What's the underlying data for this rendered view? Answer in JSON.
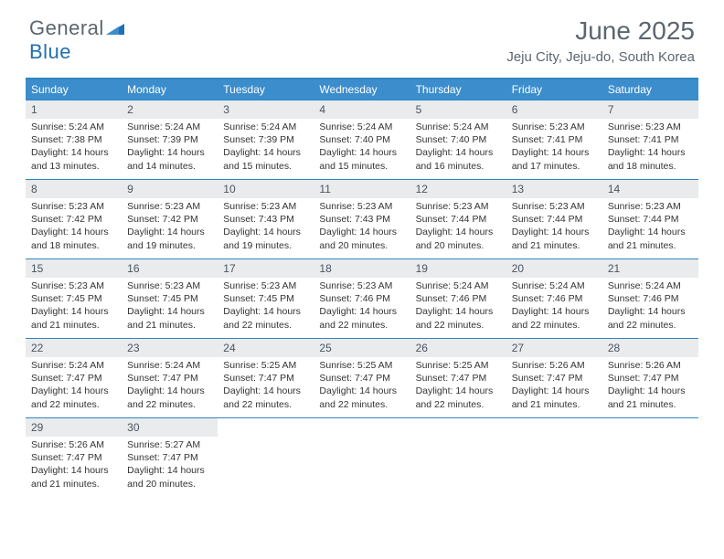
{
  "logo": {
    "text_general": "General",
    "text_blue": "Blue"
  },
  "title": "June 2025",
  "location": "Jeju City, Jeju-do, South Korea",
  "colors": {
    "header_bg": "#3c8dcc",
    "header_text": "#ffffff",
    "border": "#2e86c1",
    "daynum_bg": "#e9ebec",
    "text_muted": "#5a6670",
    "logo_blue": "#1f6fb2"
  },
  "day_headers": [
    "Sunday",
    "Monday",
    "Tuesday",
    "Wednesday",
    "Thursday",
    "Friday",
    "Saturday"
  ],
  "weeks": [
    [
      {
        "n": "1",
        "sr": "Sunrise: 5:24 AM",
        "ss": "Sunset: 7:38 PM",
        "dl": "Daylight: 14 hours and 13 minutes."
      },
      {
        "n": "2",
        "sr": "Sunrise: 5:24 AM",
        "ss": "Sunset: 7:39 PM",
        "dl": "Daylight: 14 hours and 14 minutes."
      },
      {
        "n": "3",
        "sr": "Sunrise: 5:24 AM",
        "ss": "Sunset: 7:39 PM",
        "dl": "Daylight: 14 hours and 15 minutes."
      },
      {
        "n": "4",
        "sr": "Sunrise: 5:24 AM",
        "ss": "Sunset: 7:40 PM",
        "dl": "Daylight: 14 hours and 15 minutes."
      },
      {
        "n": "5",
        "sr": "Sunrise: 5:24 AM",
        "ss": "Sunset: 7:40 PM",
        "dl": "Daylight: 14 hours and 16 minutes."
      },
      {
        "n": "6",
        "sr": "Sunrise: 5:23 AM",
        "ss": "Sunset: 7:41 PM",
        "dl": "Daylight: 14 hours and 17 minutes."
      },
      {
        "n": "7",
        "sr": "Sunrise: 5:23 AM",
        "ss": "Sunset: 7:41 PM",
        "dl": "Daylight: 14 hours and 18 minutes."
      }
    ],
    [
      {
        "n": "8",
        "sr": "Sunrise: 5:23 AM",
        "ss": "Sunset: 7:42 PM",
        "dl": "Daylight: 14 hours and 18 minutes."
      },
      {
        "n": "9",
        "sr": "Sunrise: 5:23 AM",
        "ss": "Sunset: 7:42 PM",
        "dl": "Daylight: 14 hours and 19 minutes."
      },
      {
        "n": "10",
        "sr": "Sunrise: 5:23 AM",
        "ss": "Sunset: 7:43 PM",
        "dl": "Daylight: 14 hours and 19 minutes."
      },
      {
        "n": "11",
        "sr": "Sunrise: 5:23 AM",
        "ss": "Sunset: 7:43 PM",
        "dl": "Daylight: 14 hours and 20 minutes."
      },
      {
        "n": "12",
        "sr": "Sunrise: 5:23 AM",
        "ss": "Sunset: 7:44 PM",
        "dl": "Daylight: 14 hours and 20 minutes."
      },
      {
        "n": "13",
        "sr": "Sunrise: 5:23 AM",
        "ss": "Sunset: 7:44 PM",
        "dl": "Daylight: 14 hours and 21 minutes."
      },
      {
        "n": "14",
        "sr": "Sunrise: 5:23 AM",
        "ss": "Sunset: 7:44 PM",
        "dl": "Daylight: 14 hours and 21 minutes."
      }
    ],
    [
      {
        "n": "15",
        "sr": "Sunrise: 5:23 AM",
        "ss": "Sunset: 7:45 PM",
        "dl": "Daylight: 14 hours and 21 minutes."
      },
      {
        "n": "16",
        "sr": "Sunrise: 5:23 AM",
        "ss": "Sunset: 7:45 PM",
        "dl": "Daylight: 14 hours and 21 minutes."
      },
      {
        "n": "17",
        "sr": "Sunrise: 5:23 AM",
        "ss": "Sunset: 7:45 PM",
        "dl": "Daylight: 14 hours and 22 minutes."
      },
      {
        "n": "18",
        "sr": "Sunrise: 5:23 AM",
        "ss": "Sunset: 7:46 PM",
        "dl": "Daylight: 14 hours and 22 minutes."
      },
      {
        "n": "19",
        "sr": "Sunrise: 5:24 AM",
        "ss": "Sunset: 7:46 PM",
        "dl": "Daylight: 14 hours and 22 minutes."
      },
      {
        "n": "20",
        "sr": "Sunrise: 5:24 AM",
        "ss": "Sunset: 7:46 PM",
        "dl": "Daylight: 14 hours and 22 minutes."
      },
      {
        "n": "21",
        "sr": "Sunrise: 5:24 AM",
        "ss": "Sunset: 7:46 PM",
        "dl": "Daylight: 14 hours and 22 minutes."
      }
    ],
    [
      {
        "n": "22",
        "sr": "Sunrise: 5:24 AM",
        "ss": "Sunset: 7:47 PM",
        "dl": "Daylight: 14 hours and 22 minutes."
      },
      {
        "n": "23",
        "sr": "Sunrise: 5:24 AM",
        "ss": "Sunset: 7:47 PM",
        "dl": "Daylight: 14 hours and 22 minutes."
      },
      {
        "n": "24",
        "sr": "Sunrise: 5:25 AM",
        "ss": "Sunset: 7:47 PM",
        "dl": "Daylight: 14 hours and 22 minutes."
      },
      {
        "n": "25",
        "sr": "Sunrise: 5:25 AM",
        "ss": "Sunset: 7:47 PM",
        "dl": "Daylight: 14 hours and 22 minutes."
      },
      {
        "n": "26",
        "sr": "Sunrise: 5:25 AM",
        "ss": "Sunset: 7:47 PM",
        "dl": "Daylight: 14 hours and 22 minutes."
      },
      {
        "n": "27",
        "sr": "Sunrise: 5:26 AM",
        "ss": "Sunset: 7:47 PM",
        "dl": "Daylight: 14 hours and 21 minutes."
      },
      {
        "n": "28",
        "sr": "Sunrise: 5:26 AM",
        "ss": "Sunset: 7:47 PM",
        "dl": "Daylight: 14 hours and 21 minutes."
      }
    ],
    [
      {
        "n": "29",
        "sr": "Sunrise: 5:26 AM",
        "ss": "Sunset: 7:47 PM",
        "dl": "Daylight: 14 hours and 21 minutes."
      },
      {
        "n": "30",
        "sr": "Sunrise: 5:27 AM",
        "ss": "Sunset: 7:47 PM",
        "dl": "Daylight: 14 hours and 20 minutes."
      },
      null,
      null,
      null,
      null,
      null
    ]
  ]
}
